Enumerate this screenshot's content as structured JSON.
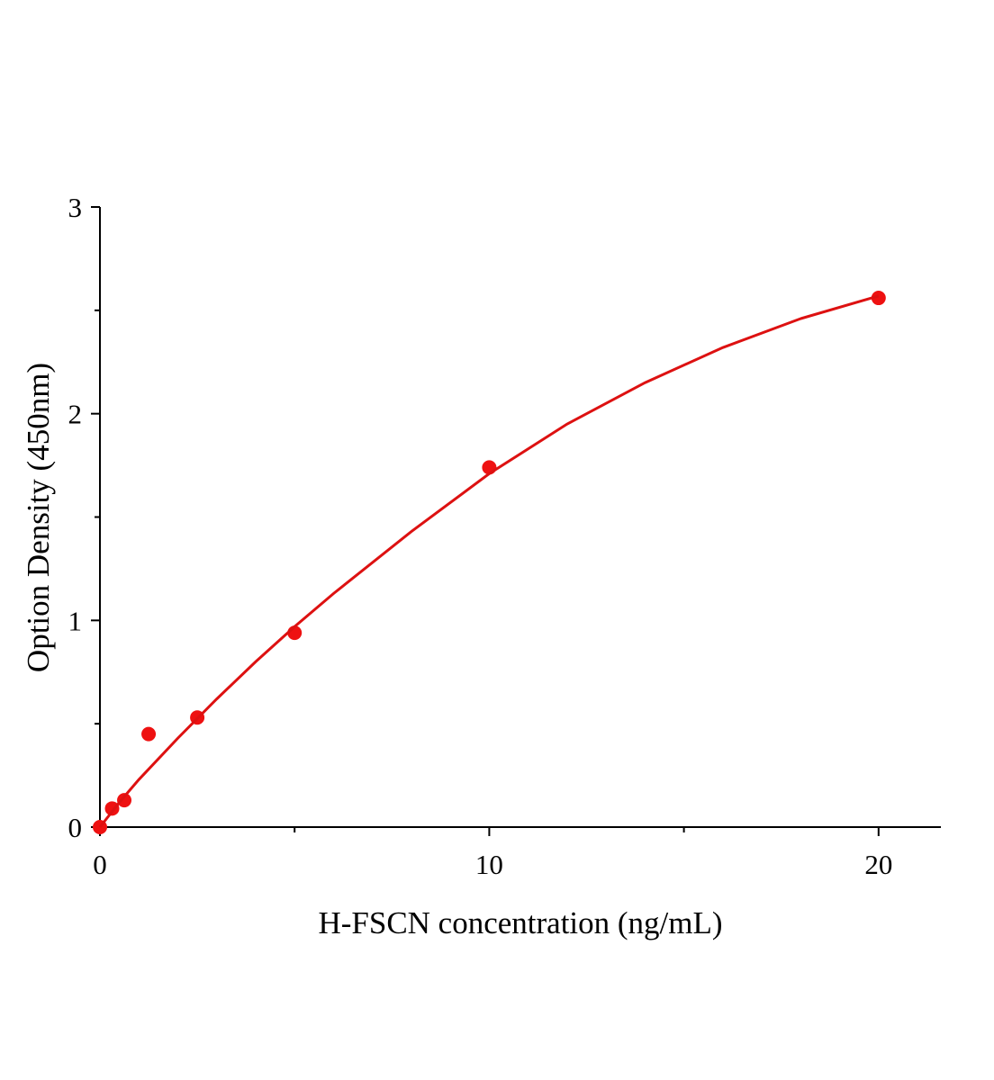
{
  "chart_data": {
    "type": "scatter",
    "x_label": "H-FSCN concentration (ng/mL)",
    "y_label": "Option Density (450nm)",
    "series": [
      {
        "type": "scatter",
        "color": "#ee1111",
        "x": [
          0,
          0.3125,
          0.625,
          1.25,
          2.5,
          5,
          10,
          20
        ],
        "values": [
          0,
          0.09,
          0.13,
          0.45,
          0.53,
          0.94,
          1.74,
          2.56
        ]
      },
      {
        "type": "line",
        "color": "#dd1111",
        "x": [
          0,
          0.5,
          1,
          2,
          3,
          4,
          5,
          6,
          8,
          10,
          12,
          14,
          16,
          18,
          20
        ],
        "values": [
          0,
          0.12,
          0.23,
          0.43,
          0.62,
          0.8,
          0.97,
          1.13,
          1.43,
          1.71,
          1.95,
          2.15,
          2.32,
          2.46,
          2.57
        ]
      }
    ],
    "xlim": [
      0,
      21.6
    ],
    "xticks": [
      0,
      10,
      20
    ],
    "xminor_ticks": [
      5,
      15
    ],
    "ylim": [
      0,
      3
    ],
    "yticks": [
      0,
      1,
      2,
      3
    ],
    "yminor_ticks": [
      0.5,
      1.5,
      2.5
    ]
  }
}
